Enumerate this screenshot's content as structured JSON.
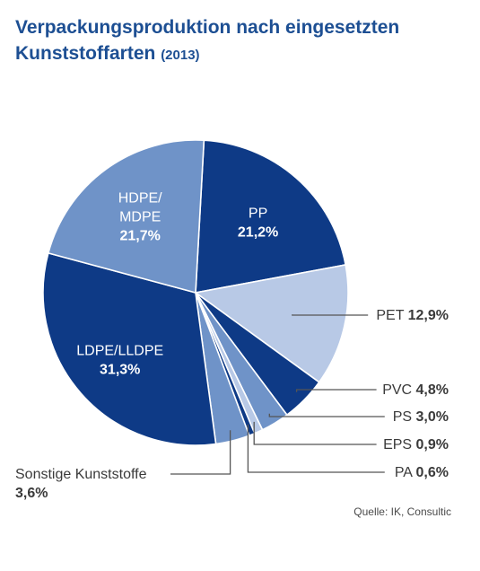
{
  "title": {
    "line1": "Verpackungsproduktion nach eingesetzten",
    "line2": "Kunststoffarten",
    "year": "(2013)"
  },
  "source": "Quelle: IK, Consultic",
  "chart_data": {
    "type": "pie",
    "title": "Verpackungsproduktion nach eingesetzten Kunststoffarten (2013)",
    "unit": "%",
    "slices": [
      {
        "name": "PP",
        "value": 21.2,
        "label": "21,2%",
        "color": "#0e3a86"
      },
      {
        "name": "PET",
        "value": 12.9,
        "label": "12,9%",
        "color": "#b8c9e6"
      },
      {
        "name": "PVC",
        "value": 4.8,
        "label": "4,8%",
        "color": "#0e3a86"
      },
      {
        "name": "PS",
        "value": 3.0,
        "label": "3,0%",
        "color": "#6f93c8"
      },
      {
        "name": "EPS",
        "value": 0.9,
        "label": "0,9%",
        "color": "#b8c9e6"
      },
      {
        "name": "PA",
        "value": 0.6,
        "label": "0,6%",
        "color": "#0e3a86"
      },
      {
        "name": "Sonstige Kunststoffe",
        "value": 3.6,
        "label": "3,6%",
        "color": "#6f93c8"
      },
      {
        "name": "LDPE/LLDPE",
        "value": 31.3,
        "label": "31,3%",
        "color": "#0e3a86"
      },
      {
        "name": "HDPE/ MDPE",
        "value": 21.7,
        "label": "21,7%",
        "color": "#6f93c8"
      }
    ]
  }
}
